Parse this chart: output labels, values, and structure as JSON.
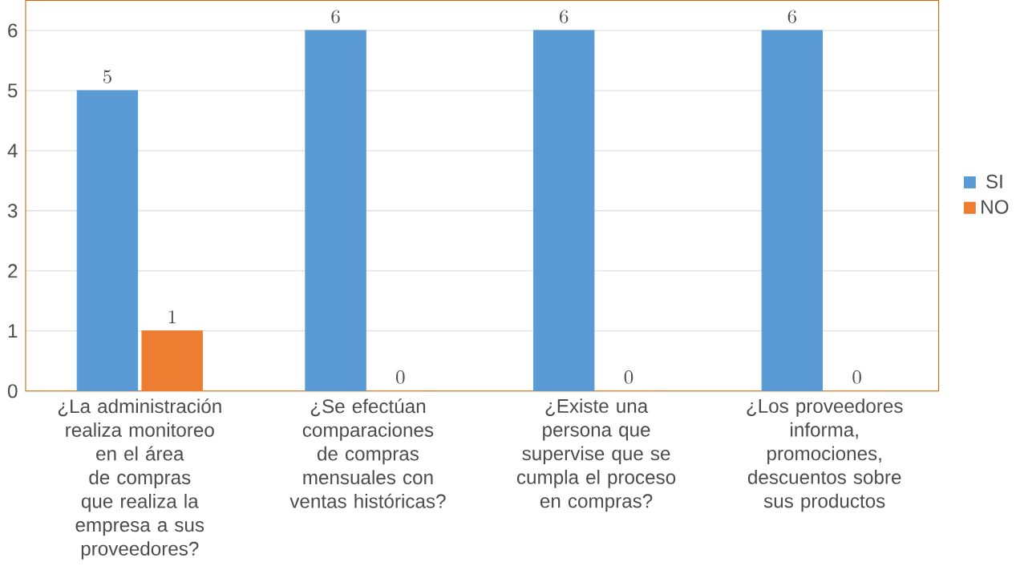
{
  "chart_data": {
    "type": "bar",
    "categories": [
      "¿La administración realiza monitoreo en el área de compras que realiza la empresa a sus proveedores?",
      "¿Se efectúan comparaciones de compras mensuales con ventas históricas?",
      "¿Existe una persona que supervise que se cumpla el proceso en compras?",
      "¿Los proveedores informa, promociones, descuentos sobre sus productos"
    ],
    "series": [
      {
        "name": "SI",
        "color": "#5b9bd5",
        "values": [
          5,
          6,
          6,
          6
        ]
      },
      {
        "name": "NO",
        "color": "#ed7d31",
        "values": [
          1,
          0,
          0,
          0
        ]
      }
    ],
    "ylim": [
      0,
      6.5
    ],
    "yticks": [
      0,
      1,
      2,
      3,
      4,
      5,
      6
    ],
    "grid": "y",
    "legend": "right",
    "data_labels": true
  }
}
